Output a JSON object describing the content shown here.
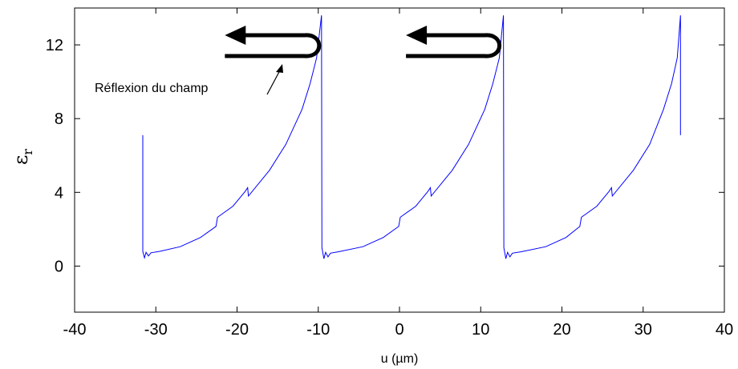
{
  "chart_data": {
    "type": "line",
    "xlabel": "u (µm)",
    "ylabel": {
      "base": "ε",
      "sub": "r"
    },
    "xlim": [
      -40,
      40
    ],
    "ylim": [
      -2.5,
      14
    ],
    "x_ticks": [
      -40,
      -30,
      -20,
      -10,
      0,
      10,
      20,
      30,
      40
    ],
    "y_ticks": [
      0,
      4,
      8,
      12
    ],
    "grid": false,
    "legend": "none",
    "series_color": "#0000ff",
    "series": [
      {
        "points": [
          [
            -31.6,
            7.1
          ],
          [
            -31.6,
            0.8
          ],
          [
            -31.4,
            0.45
          ],
          [
            -31.2,
            0.75
          ],
          [
            -30.9,
            0.55
          ],
          [
            -30.6,
            0.72
          ],
          [
            -29.5,
            0.8
          ],
          [
            -27,
            1.05
          ],
          [
            -24.5,
            1.55
          ],
          [
            -22.6,
            2.15
          ],
          [
            -22.4,
            2.65
          ],
          [
            -20.5,
            3.25
          ],
          [
            -19,
            4.05
          ],
          [
            -18.7,
            4.25
          ],
          [
            -18.6,
            3.8
          ],
          [
            -16,
            5.2
          ],
          [
            -14,
            6.6
          ],
          [
            -12,
            8.5
          ],
          [
            -11,
            9.9
          ],
          [
            -10.2,
            11.3
          ],
          [
            -9.6,
            13.6
          ],
          [
            -9.55,
            1.0
          ],
          [
            -9.3,
            0.4
          ],
          [
            -9.1,
            0.75
          ],
          [
            -8.8,
            0.5
          ],
          [
            -8.5,
            0.7
          ],
          [
            -7.5,
            0.78
          ],
          [
            -4.5,
            1.05
          ],
          [
            -2,
            1.55
          ],
          [
            -0.1,
            2.15
          ],
          [
            0.1,
            2.65
          ],
          [
            2,
            3.25
          ],
          [
            3.5,
            4.05
          ],
          [
            3.8,
            4.25
          ],
          [
            3.9,
            3.8
          ],
          [
            6.5,
            5.2
          ],
          [
            8.5,
            6.6
          ],
          [
            10.5,
            8.5
          ],
          [
            11.5,
            9.9
          ],
          [
            12.3,
            11.3
          ],
          [
            12.8,
            13.6
          ],
          [
            12.85,
            1.0
          ],
          [
            13.1,
            0.4
          ],
          [
            13.3,
            0.75
          ],
          [
            13.6,
            0.5
          ],
          [
            13.9,
            0.7
          ],
          [
            15,
            0.78
          ],
          [
            18,
            1.05
          ],
          [
            20.5,
            1.55
          ],
          [
            22.2,
            2.15
          ],
          [
            22.4,
            2.65
          ],
          [
            24.3,
            3.25
          ],
          [
            25.8,
            4.05
          ],
          [
            26.1,
            4.25
          ],
          [
            26.2,
            3.8
          ],
          [
            28.8,
            5.2
          ],
          [
            30.8,
            6.6
          ],
          [
            32.5,
            8.5
          ],
          [
            33.5,
            9.9
          ],
          [
            34.2,
            11.3
          ],
          [
            34.6,
            13.6
          ],
          [
            34.6,
            7.1
          ]
        ]
      }
    ],
    "annotations": [
      {
        "text": "Réflexion du champ"
      }
    ]
  }
}
